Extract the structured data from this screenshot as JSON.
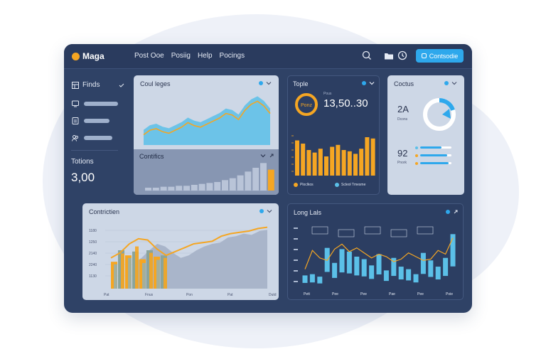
{
  "app": {
    "logo_text": "Maga",
    "nav": [
      "Post Ooe",
      "Posiig",
      "Help",
      "Pocings"
    ],
    "cta_label": "Contsodie"
  },
  "sidebar": {
    "title": "Finds",
    "items": [
      "",
      "",
      ""
    ],
    "stat_label": "Totions",
    "stat_value": "3,00"
  },
  "colors": {
    "accent": "#2ea8ec",
    "orange": "#f5a623",
    "bar_blue": "#5bc0e8",
    "panel_dark": "#2c3e62",
    "panel_light": "#cdd7e6"
  },
  "cards": {
    "coul": {
      "title": "Coul leges"
    },
    "contifics": {
      "title": "Contifics"
    },
    "tople": {
      "title": "Tople",
      "gauge_label": "Ponz",
      "small_label": "Pous",
      "big_value": "13,50..30",
      "legend": [
        "Ploclkos",
        "Scleol Tmesme"
      ]
    },
    "coctus": {
      "title": "Coctus",
      "stat1_value": "2A",
      "stat1_label": "Dcons",
      "stat2_value": "92",
      "stat2_label": "Pnork",
      "donut_percent": 80
    },
    "contrictien": {
      "title": "Contrictien"
    },
    "long": {
      "title": "Long Lals"
    }
  },
  "chart_data": [
    {
      "type": "area",
      "id": "coul",
      "series": [
        {
          "values": [
            20,
            26,
            28,
            24,
            22,
            26,
            30,
            36,
            32,
            30,
            34,
            38,
            42,
            48,
            46,
            40,
            52,
            60,
            64,
            58,
            48
          ]
        }
      ],
      "ylim": [
        0,
        70
      ]
    },
    {
      "type": "bar",
      "id": "contifics",
      "values": [
        3,
        3,
        4,
        4,
        5,
        5,
        6,
        7,
        8,
        9,
        11,
        13,
        16,
        20,
        24,
        29,
        22
      ],
      "ylim": [
        0,
        30
      ]
    },
    {
      "type": "bar",
      "id": "tople",
      "values": [
        55,
        50,
        40,
        36,
        42,
        30,
        45,
        48,
        40,
        38,
        34,
        42,
        60,
        58
      ],
      "ylim": [
        0,
        60
      ]
    },
    {
      "type": "bar",
      "id": "contrictien",
      "y_ticks": [
        "1180",
        "1250",
        "2140",
        "2240",
        "1130"
      ],
      "x_ticks": [
        "Pat",
        "Fnus",
        "Pon",
        "Pat",
        "Dutd"
      ],
      "series": [
        {
          "name": "",
          "values": [
            42,
            60,
            52,
            58,
            46,
            60,
            50,
            52
          ]
        },
        {
          "name": "",
          "values": [
            38,
            55,
            48,
            66,
            40,
            56,
            45,
            48
          ]
        }
      ],
      "area": [
        40,
        48,
        60,
        70,
        66,
        56,
        48,
        52,
        60,
        66,
        70,
        72,
        80,
        82,
        86,
        84,
        90,
        92
      ],
      "line": [
        48,
        56,
        70,
        78,
        76,
        62,
        52,
        58,
        64,
        70,
        72,
        74,
        82,
        86,
        88,
        90,
        94,
        96
      ],
      "ylim": [
        0,
        100
      ]
    },
    {
      "type": "bar",
      "id": "long",
      "y_ticks": [
        "",
        "",
        "",
        "",
        "",
        ""
      ],
      "x_ticks": [
        "Pett",
        "Pee",
        "Pee",
        "Pae",
        "Pee",
        "Poie"
      ],
      "bars": [
        20,
        22,
        18,
        64,
        40,
        62,
        58,
        50,
        46,
        36,
        54,
        28,
        48,
        34,
        30,
        22,
        56,
        44,
        34,
        48,
        86
      ],
      "line": [
        30,
        60,
        48,
        44,
        62,
        70,
        58,
        64,
        56,
        48,
        54,
        50,
        42,
        46,
        56,
        50,
        44,
        46,
        60,
        54,
        80
      ],
      "annotations": [
        "",
        "",
        "",
        "",
        ""
      ],
      "ylim": [
        0,
        100
      ]
    }
  ]
}
